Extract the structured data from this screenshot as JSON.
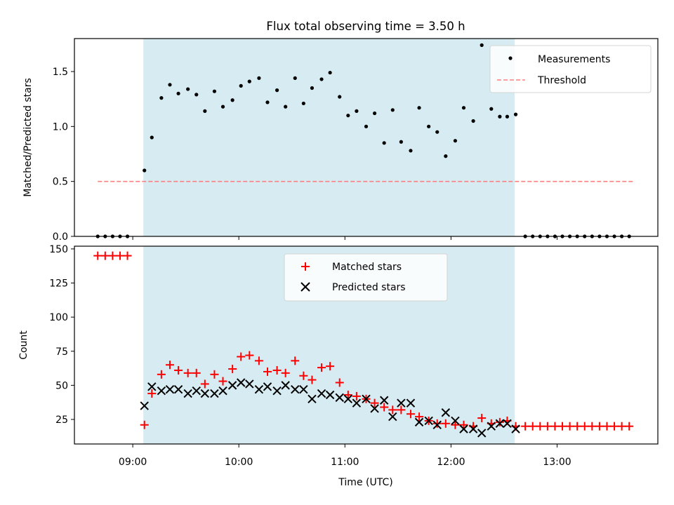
{
  "chart_data": {
    "title": "Flux total observing time = 3.50 h",
    "xlabel": "Time (UTC)",
    "x_unit": "hours (UTC)",
    "xlim": [
      8.45,
      13.95
    ],
    "x_ticks": [
      {
        "v": 9,
        "label": "09:00"
      },
      {
        "v": 10,
        "label": "10:00"
      },
      {
        "v": 11,
        "label": "11:00"
      },
      {
        "v": 12,
        "label": "12:00"
      },
      {
        "v": 13,
        "label": "13:00"
      }
    ],
    "shaded_span": {
      "x0": 9.1,
      "x1": 12.6,
      "color": "#add8e6"
    },
    "colors": {
      "measurements": "#000000",
      "threshold": "#ff7f7f",
      "matched": "#ff0000",
      "predicted": "#000000",
      "span": "#add8e6"
    },
    "panels": [
      {
        "type": "scatter",
        "ylabel": "Matched/Predicted stars",
        "ylim": [
          0,
          1.8
        ],
        "y_ticks": [
          {
            "v": 0,
            "label": "0.0"
          },
          {
            "v": 0.5,
            "label": "0.5"
          },
          {
            "v": 1.0,
            "label": "1.0"
          },
          {
            "v": 1.5,
            "label": "1.5"
          }
        ],
        "legend": {
          "position": "upper right",
          "entries": [
            "Measurements",
            "Threshold"
          ]
        },
        "series": [
          {
            "name": "Measurements",
            "marker": "dot",
            "x": [
              8.67,
              8.74,
              8.81,
              8.88,
              8.95,
              9.11,
              9.18,
              9.27,
              9.35,
              9.43,
              9.52,
              9.6,
              9.68,
              9.77,
              9.85,
              9.94,
              10.02,
              10.1,
              10.19,
              10.27,
              10.36,
              10.44,
              10.53,
              10.61,
              10.69,
              10.78,
              10.86,
              10.95,
              11.03,
              11.11,
              11.2,
              11.28,
              11.37,
              11.45,
              11.53,
              11.62,
              11.7,
              11.79,
              11.87,
              11.95,
              12.04,
              12.12,
              12.21,
              12.29,
              12.38,
              12.46,
              12.53,
              12.61,
              12.7,
              12.77,
              12.84,
              12.91,
              12.98,
              13.05,
              13.12,
              13.19,
              13.26,
              13.33,
              13.4,
              13.47,
              13.54,
              13.61,
              13.68
            ],
            "y": [
              0,
              0,
              0,
              0,
              0,
              0.6,
              0.9,
              1.26,
              1.38,
              1.3,
              1.34,
              1.29,
              1.14,
              1.32,
              1.18,
              1.24,
              1.37,
              1.41,
              1.44,
              1.22,
              1.33,
              1.18,
              1.44,
              1.21,
              1.35,
              1.43,
              1.49,
              1.27,
              1.1,
              1.14,
              1.0,
              1.12,
              0.85,
              1.15,
              0.86,
              0.78,
              1.17,
              1.0,
              0.95,
              0.73,
              0.87,
              1.17,
              1.05,
              1.74,
              1.16,
              1.09,
              1.09,
              1.11,
              0,
              0,
              0,
              0,
              0,
              0,
              0,
              0,
              0,
              0,
              0,
              0,
              0,
              0,
              0
            ]
          },
          {
            "name": "Threshold",
            "marker": "dashed-line",
            "x": [
              8.67,
              13.73
            ],
            "y": [
              0.5,
              0.5
            ]
          }
        ]
      },
      {
        "type": "scatter",
        "ylabel": "Count",
        "ylim": [
          7,
          152
        ],
        "y_ticks": [
          {
            "v": 25,
            "label": "25"
          },
          {
            "v": 50,
            "label": "50"
          },
          {
            "v": 75,
            "label": "75"
          },
          {
            "v": 100,
            "label": "100"
          },
          {
            "v": 125,
            "label": "125"
          },
          {
            "v": 150,
            "label": "150"
          }
        ],
        "legend": {
          "position": "upper center",
          "entries": [
            "Matched stars",
            "Predicted stars"
          ]
        },
        "series": [
          {
            "name": "Matched stars",
            "marker": "plus",
            "x": [
              8.67,
              8.74,
              8.81,
              8.88,
              8.95,
              9.11,
              9.18,
              9.27,
              9.35,
              9.43,
              9.52,
              9.6,
              9.68,
              9.77,
              9.85,
              9.94,
              10.02,
              10.1,
              10.19,
              10.27,
              10.36,
              10.44,
              10.53,
              10.61,
              10.69,
              10.78,
              10.86,
              10.95,
              11.03,
              11.11,
              11.2,
              11.28,
              11.37,
              11.45,
              11.53,
              11.62,
              11.7,
              11.79,
              11.87,
              11.95,
              12.04,
              12.12,
              12.21,
              12.29,
              12.38,
              12.46,
              12.53,
              12.61,
              12.7,
              12.77,
              12.84,
              12.91,
              12.98,
              13.05,
              13.12,
              13.19,
              13.26,
              13.33,
              13.4,
              13.47,
              13.54,
              13.61,
              13.68
            ],
            "y": [
              145,
              145,
              145,
              145,
              145,
              21,
              44,
              58,
              65,
              61,
              59,
              59,
              51,
              58,
              53,
              62,
              71,
              72,
              68,
              60,
              61,
              59,
              68,
              57,
              54,
              63,
              64,
              52,
              43,
              42,
              40,
              37,
              34,
              32,
              32,
              29,
              27,
              24,
              22,
              22,
              21,
              21,
              20,
              26,
              22,
              23,
              24,
              20,
              20,
              20,
              20,
              20,
              20,
              20,
              20,
              20,
              20,
              20,
              20,
              20,
              20,
              20,
              20
            ]
          },
          {
            "name": "Predicted stars",
            "marker": "x",
            "x": [
              9.11,
              9.18,
              9.27,
              9.35,
              9.43,
              9.52,
              9.6,
              9.68,
              9.77,
              9.85,
              9.94,
              10.02,
              10.1,
              10.19,
              10.27,
              10.36,
              10.44,
              10.53,
              10.61,
              10.69,
              10.78,
              10.86,
              10.95,
              11.03,
              11.11,
              11.2,
              11.28,
              11.37,
              11.45,
              11.53,
              11.62,
              11.7,
              11.79,
              11.87,
              11.95,
              12.04,
              12.12,
              12.21,
              12.29,
              12.38,
              12.46,
              12.53,
              12.61
            ],
            "y": [
              35,
              49,
              46,
              47,
              47,
              44,
              46,
              44,
              44,
              46,
              50,
              52,
              51,
              47,
              49,
              46,
              50,
              47,
              47,
              40,
              44,
              43,
              41,
              40,
              37,
              40,
              33,
              39,
              27,
              37,
              37,
              23,
              24,
              21,
              30,
              24,
              18,
              18,
              15,
              20,
              22,
              22,
              18
            ]
          }
        ]
      }
    ]
  }
}
